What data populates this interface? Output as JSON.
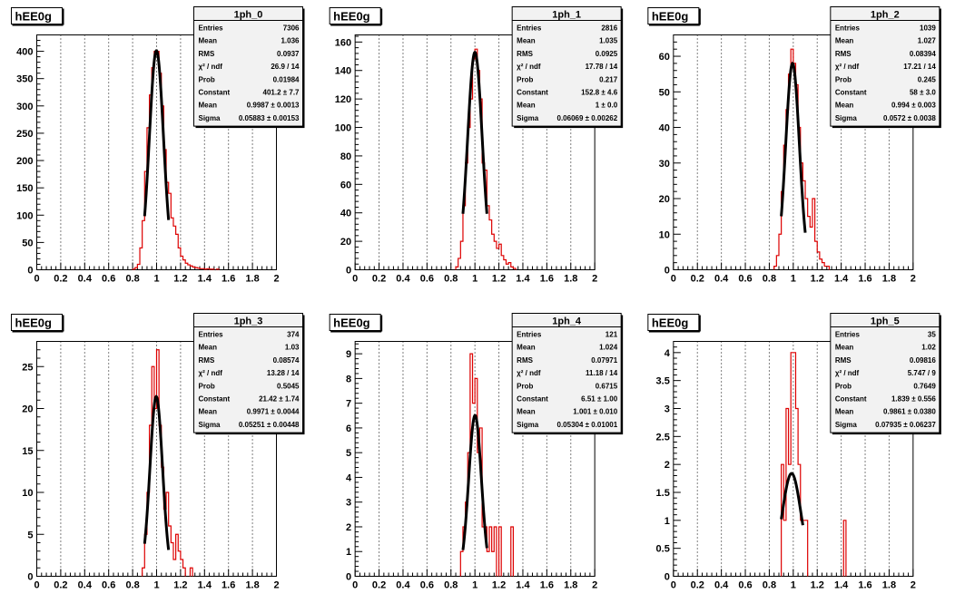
{
  "colors": {
    "histogram": "#dd0000",
    "fit": "#000000",
    "grid": "#000000",
    "background": "#ffffff"
  },
  "chart_data": [
    {
      "type": "histogram",
      "pad_label": "hEE0g",
      "title": "1ph_0",
      "xlim": [
        0,
        2
      ],
      "ylim": [
        0,
        430
      ],
      "x_ticks": [
        "0",
        "0.2",
        "0.4",
        "0.6",
        "0.8",
        "1",
        "1.2",
        "1.4",
        "1.6",
        "1.8",
        "2"
      ],
      "y_ticks": [
        0,
        50,
        100,
        150,
        200,
        250,
        300,
        350,
        400
      ],
      "grid_x": true,
      "fit": {
        "constant": 401.2,
        "mean": 0.9987,
        "sigma": 0.05883,
        "range": [
          0.9,
          1.1
        ]
      },
      "bins": {
        "x": [
          0.8,
          0.82,
          0.84,
          0.86,
          0.88,
          0.9,
          0.92,
          0.94,
          0.96,
          0.98,
          1.0,
          1.02,
          1.04,
          1.06,
          1.08,
          1.1,
          1.12,
          1.14,
          1.16,
          1.18,
          1.2,
          1.22,
          1.24,
          1.26,
          1.28,
          1.3,
          1.32,
          1.34,
          1.36,
          1.38,
          1.4,
          1.42,
          1.44,
          1.46,
          1.5
        ],
        "y": [
          1,
          4,
          10,
          40,
          90,
          180,
          260,
          320,
          370,
          400,
          400,
          360,
          300,
          220,
          160,
          140,
          95,
          80,
          65,
          40,
          25,
          18,
          12,
          9,
          7,
          5,
          4,
          3,
          2,
          2,
          1,
          2,
          1,
          1,
          1
        ]
      },
      "stats": [
        {
          "label": "Entries",
          "value": "7306"
        },
        {
          "label": "Mean",
          "value": "1.036"
        },
        {
          "label": "RMS",
          "value": "0.0937"
        },
        {
          "label": "χ² / ndf",
          "value": "26.9 / 14"
        },
        {
          "label": "Prob",
          "value": "0.01984"
        },
        {
          "label": "Constant",
          "value": "401.2 ± 7.7"
        },
        {
          "label": "Mean",
          "value": "0.9987 ± 0.0013"
        },
        {
          "label": "Sigma",
          "value": "0.05883 ± 0.00153"
        }
      ]
    },
    {
      "type": "histogram",
      "pad_label": "hEE0g",
      "title": "1ph_1",
      "xlim": [
        0,
        2
      ],
      "ylim": [
        0,
        165
      ],
      "x_ticks": [
        "0",
        "0.2",
        "0.4",
        "0.6",
        "0.8",
        "1",
        "1.2",
        "1.4",
        "1.6",
        "1.8",
        "2"
      ],
      "y_ticks": [
        0,
        20,
        40,
        60,
        80,
        100,
        120,
        140,
        160
      ],
      "grid_x": true,
      "fit": {
        "constant": 152.8,
        "mean": 1,
        "sigma": 0.06069,
        "range": [
          0.9,
          1.1
        ]
      },
      "bins": {
        "x": [
          0.84,
          0.86,
          0.88,
          0.9,
          0.92,
          0.94,
          0.96,
          0.98,
          1.0,
          1.02,
          1.04,
          1.06,
          1.08,
          1.1,
          1.12,
          1.14,
          1.16,
          1.18,
          1.2,
          1.22,
          1.24,
          1.26,
          1.28,
          1.3,
          1.32
        ],
        "y": [
          2,
          8,
          20,
          45,
          75,
          100,
          120,
          148,
          155,
          140,
          120,
          75,
          70,
          45,
          35,
          25,
          20,
          15,
          18,
          10,
          7,
          4,
          5,
          2,
          1
        ]
      },
      "stats": [
        {
          "label": "Entries",
          "value": "2816"
        },
        {
          "label": "Mean",
          "value": "1.035"
        },
        {
          "label": "RMS",
          "value": "0.0925"
        },
        {
          "label": "χ² / ndf",
          "value": "17.78 / 14"
        },
        {
          "label": "Prob",
          "value": "0.217"
        },
        {
          "label": "Constant",
          "value": "152.8 ± 4.6"
        },
        {
          "label": "Mean",
          "value": "1 ± 0.0"
        },
        {
          "label": "Sigma",
          "value": "0.06069 ± 0.00262"
        }
      ]
    },
    {
      "type": "histogram",
      "pad_label": "hEE0g",
      "title": "1ph_2",
      "xlim": [
        0,
        2
      ],
      "ylim": [
        0,
        66
      ],
      "x_ticks": [
        "0",
        "0.2",
        "0.4",
        "0.6",
        "0.8",
        "1",
        "1.2",
        "1.4",
        "1.6",
        "1.8",
        "2"
      ],
      "y_ticks": [
        0,
        10,
        20,
        30,
        40,
        50,
        60
      ],
      "grid_x": true,
      "fit": {
        "constant": 58,
        "mean": 0.994,
        "sigma": 0.0572,
        "range": [
          0.9,
          1.1
        ]
      },
      "bins": {
        "x": [
          0.84,
          0.86,
          0.88,
          0.9,
          0.92,
          0.94,
          0.96,
          0.98,
          1.0,
          1.02,
          1.04,
          1.06,
          1.08,
          1.1,
          1.12,
          1.14,
          1.16,
          1.18,
          1.2,
          1.22,
          1.24,
          1.26,
          1.28
        ],
        "y": [
          1,
          4,
          10,
          22,
          35,
          45,
          55,
          62,
          58,
          52,
          40,
          30,
          25,
          20,
          15,
          12,
          20,
          8,
          5,
          3,
          2,
          1,
          1
        ]
      },
      "stats": [
        {
          "label": "Entries",
          "value": "1039"
        },
        {
          "label": "Mean",
          "value": "1.027"
        },
        {
          "label": "RMS",
          "value": "0.08394"
        },
        {
          "label": "χ² / ndf",
          "value": "17.21 / 14"
        },
        {
          "label": "Prob",
          "value": "0.245"
        },
        {
          "label": "Constant",
          "value": "58 ± 3.0"
        },
        {
          "label": "Mean",
          "value": "0.994 ± 0.003"
        },
        {
          "label": "Sigma",
          "value": "0.0572 ± 0.0038"
        }
      ]
    },
    {
      "type": "histogram",
      "pad_label": "hEE0g",
      "title": "1ph_3",
      "xlim": [
        0,
        2
      ],
      "ylim": [
        0,
        28
      ],
      "x_ticks": [
        "0",
        "0.2",
        "0.4",
        "0.6",
        "0.8",
        "1",
        "1.2",
        "1.4",
        "1.6",
        "1.8",
        "2"
      ],
      "y_ticks": [
        0,
        5,
        10,
        15,
        20,
        25
      ],
      "grid_x": true,
      "fit": {
        "constant": 21.42,
        "mean": 0.9971,
        "sigma": 0.05251,
        "range": [
          0.9,
          1.1
        ]
      },
      "bins": {
        "x": [
          0.88,
          0.9,
          0.92,
          0.94,
          0.96,
          0.98,
          1.0,
          1.02,
          1.04,
          1.06,
          1.08,
          1.1,
          1.12,
          1.14,
          1.16,
          1.18,
          1.2,
          1.22,
          1.28
        ],
        "y": [
          1,
          5,
          10,
          18,
          25,
          20,
          27,
          18,
          13,
          8,
          10,
          6,
          4,
          2,
          5,
          3,
          2,
          1,
          1
        ]
      },
      "stats": [
        {
          "label": "Entries",
          "value": "374"
        },
        {
          "label": "Mean",
          "value": "1.03"
        },
        {
          "label": "RMS",
          "value": "0.08574"
        },
        {
          "label": "χ² / ndf",
          "value": "13.28 / 14"
        },
        {
          "label": "Prob",
          "value": "0.5045"
        },
        {
          "label": "Constant",
          "value": "21.42 ± 1.74"
        },
        {
          "label": "Mean",
          "value": "0.9971 ± 0.0044"
        },
        {
          "label": "Sigma",
          "value": "0.05251 ± 0.00448"
        }
      ]
    },
    {
      "type": "histogram",
      "pad_label": "hEE0g",
      "title": "1ph_4",
      "xlim": [
        0,
        2
      ],
      "ylim": [
        0,
        9.5
      ],
      "x_ticks": [
        "0",
        "0.2",
        "0.4",
        "0.6",
        "0.8",
        "1",
        "1.2",
        "1.4",
        "1.6",
        "1.8",
        "2"
      ],
      "y_ticks": [
        0,
        1,
        2,
        3,
        4,
        5,
        6,
        7,
        8,
        9
      ],
      "grid_x": true,
      "fit": {
        "constant": 6.51,
        "mean": 1.001,
        "sigma": 0.05304,
        "range": [
          0.9,
          1.1
        ]
      },
      "bins": {
        "x": [
          0.88,
          0.9,
          0.92,
          0.94,
          0.96,
          0.98,
          1.0,
          1.02,
          1.04,
          1.06,
          1.08,
          1.1,
          1.12,
          1.14,
          1.16,
          1.2,
          1.3
        ],
        "y": [
          1,
          2,
          3,
          5,
          9,
          7,
          8,
          5,
          6,
          2,
          2,
          1,
          2,
          1,
          2,
          2,
          2
        ]
      },
      "stats": [
        {
          "label": "Entries",
          "value": "121"
        },
        {
          "label": "Mean",
          "value": "1.024"
        },
        {
          "label": "RMS",
          "value": "0.07971"
        },
        {
          "label": "χ² / ndf",
          "value": "11.18 / 14"
        },
        {
          "label": "Prob",
          "value": "0.6715"
        },
        {
          "label": "Constant",
          "value": "6.51 ± 1.00"
        },
        {
          "label": "Mean",
          "value": "1.001 ± 0.010"
        },
        {
          "label": "Sigma",
          "value": "0.05304 ± 0.01001"
        }
      ]
    },
    {
      "type": "histogram",
      "pad_label": "hEE0g",
      "title": "1ph_5",
      "xlim": [
        0,
        2
      ],
      "ylim": [
        0,
        4.2
      ],
      "x_ticks": [
        "0",
        "0.2",
        "0.4",
        "0.6",
        "0.8",
        "1",
        "1.2",
        "1.4",
        "1.6",
        "1.8",
        "2"
      ],
      "y_ticks": [
        0,
        0.5,
        1,
        1.5,
        2,
        2.5,
        3,
        3.5,
        4
      ],
      "grid_x": true,
      "fit": {
        "constant": 1.839,
        "mean": 0.9861,
        "sigma": 0.07935,
        "range": [
          0.9,
          1.08
        ]
      },
      "bins": {
        "x": [
          0.9,
          0.92,
          0.94,
          0.96,
          0.98,
          1.0,
          1.02,
          1.04,
          1.06,
          1.08,
          1.1,
          1.42
        ],
        "y": [
          2,
          1,
          3,
          2,
          4,
          4,
          3,
          2,
          1,
          1,
          1,
          1
        ]
      },
      "stats": [
        {
          "label": "Entries",
          "value": "35"
        },
        {
          "label": "Mean",
          "value": "1.02"
        },
        {
          "label": "RMS",
          "value": "0.09816"
        },
        {
          "label": "χ² / ndf",
          "value": "5.747 / 9"
        },
        {
          "label": "Prob",
          "value": "0.7649"
        },
        {
          "label": "Constant",
          "value": "1.839 ± 0.556"
        },
        {
          "label": "Mean",
          "value": "0.9861 ± 0.0380"
        },
        {
          "label": "Sigma",
          "value": "0.07935 ± 0.06237"
        }
      ]
    }
  ]
}
